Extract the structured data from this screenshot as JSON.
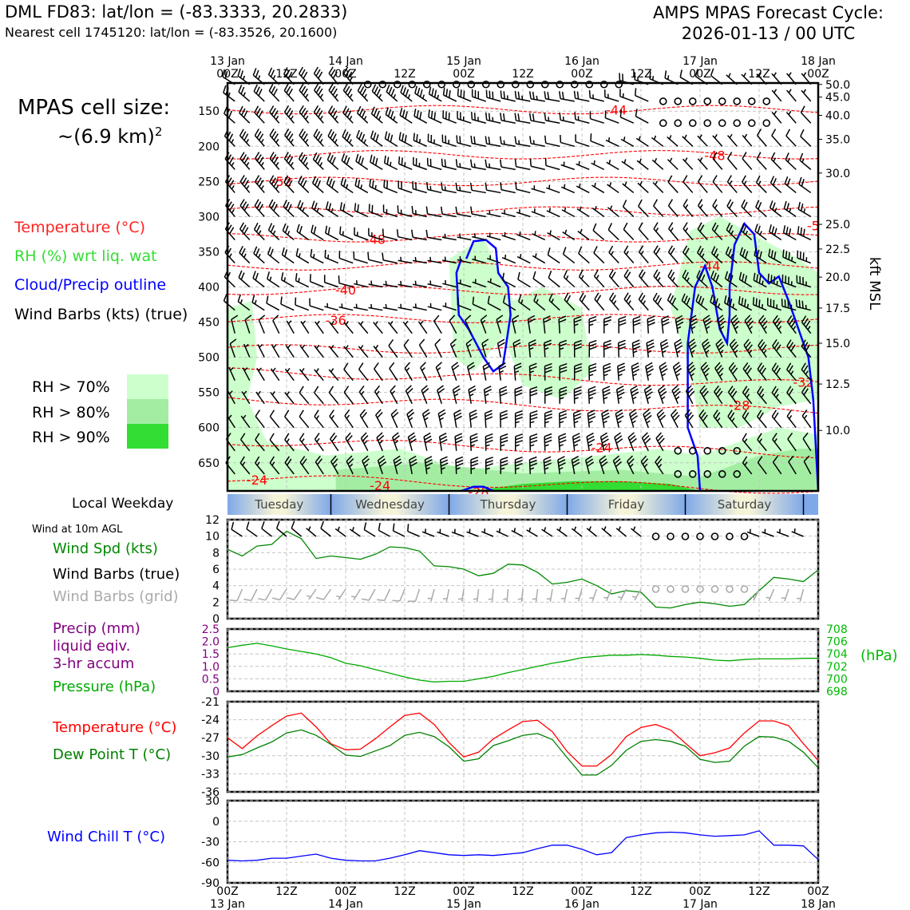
{
  "header": {
    "title_left": "DML FD83: lat/lon = (-83.3333, 20.2833)",
    "subtitle_left": "Nearest cell 1745120: lat/lon = (-83.3526, 20.1600)",
    "title_right_1": "AMPS MPAS Forecast Cycle:",
    "title_right_2": "2026-01-13 / 00 UTC"
  },
  "sidebar": {
    "cell_size_label": "MPAS cell size:",
    "cell_size_value": "~(6.9 km)",
    "cell_size_exp": "2",
    "legend_temperature": "Temperature (°C)",
    "legend_rh": "RH (%) wrt liq. wat",
    "legend_cloud": "Cloud/Precip outline",
    "legend_barbs": "Wind Barbs (kts) (true)",
    "rh_levels": [
      {
        "label": "RH > 70%",
        "color": "#ccffcc"
      },
      {
        "label": "RH > 80%",
        "color": "#a3eda3"
      },
      {
        "label": "RH > 90%",
        "color": "#33dd33"
      }
    ],
    "local_weekday": "Local Weekday",
    "wind_10m": "Wind at 10m AGL",
    "wind_spd": "Wind Spd (kts)",
    "wind_barbs_true": "Wind Barbs (true)",
    "wind_barbs_grid": "Wind Barbs (grid)",
    "precip_1": "Precip (mm)",
    "precip_2": "liquid eqiv.",
    "precip_3": "3-hr accum",
    "pressure": "Pressure (hPa)",
    "temperature": "Temperature (°C)",
    "dewpoint": "Dew Point T (°C)",
    "wind_chill": "Wind Chill T (°C)"
  },
  "colors": {
    "temperature": "#ff0000",
    "rh_text": "#22cc22",
    "cloud": "#0000ff",
    "pressure": "#00aa00",
    "precip": "#800080",
    "wind_spd": "#008800",
    "dewpoint": "#008000",
    "windchill": "#0000ff",
    "grid_barbs": "#aaaaaa"
  },
  "chart_data": [
    {
      "type": "line",
      "id": "cross-section",
      "x_top": [
        {
          "top": "13 Jan",
          "bottom": "00Z",
          "h": 0
        },
        {
          "top": "",
          "bottom": "12Z",
          "h": 12
        },
        {
          "top": "14 Jan",
          "bottom": "00Z",
          "h": 24
        },
        {
          "top": "",
          "bottom": "12Z",
          "h": 36
        },
        {
          "top": "15 Jan",
          "bottom": "00Z",
          "h": 48
        },
        {
          "top": "",
          "bottom": "12Z",
          "h": 60
        },
        {
          "top": "16 Jan",
          "bottom": "00Z",
          "h": 72
        },
        {
          "top": "",
          "bottom": "12Z",
          "h": 84
        },
        {
          "top": "17 Jan",
          "bottom": "00Z",
          "h": 96
        },
        {
          "top": "",
          "bottom": "12Z",
          "h": 108
        },
        {
          "top": "18 Jan",
          "bottom": "00Z",
          "h": 120
        }
      ],
      "xlim": [
        0,
        120
      ],
      "pressure_ticks": [
        150,
        200,
        250,
        300,
        350,
        400,
        450,
        500,
        550,
        600,
        650
      ],
      "pressure_range": [
        110,
        690
      ],
      "kft_ticks": [
        "50.0",
        "45.0",
        "40.0",
        "35.0",
        "30.0",
        "25.0",
        "22.5",
        "20.0",
        "17.5",
        "15.0",
        "12.5",
        "10.0"
      ],
      "kft_pressure": [
        112,
        130,
        156,
        190,
        238,
        311,
        346,
        386,
        430,
        480,
        538,
        604
      ],
      "right_label": "kft MSL",
      "temperature_labels": [
        {
          "text": "-44",
          "h": 79,
          "p": 149
        },
        {
          "text": "-48",
          "h": 99,
          "p": 214
        },
        {
          "text": "-52",
          "h": 11,
          "p": 251
        },
        {
          "text": "-5",
          "h": 119,
          "p": 314
        },
        {
          "text": "-48",
          "h": 30,
          "p": 333
        },
        {
          "text": "-44",
          "h": 98,
          "p": 371
        },
        {
          "text": "-40",
          "h": 24,
          "p": 405
        },
        {
          "text": "-36",
          "h": 22,
          "p": 448
        },
        {
          "text": "-32",
          "h": 117,
          "p": 536
        },
        {
          "text": "-28",
          "h": 104,
          "p": 569
        },
        {
          "text": "-24",
          "h": 76,
          "p": 629
        },
        {
          "text": "-24",
          "h": 6,
          "p": 675
        },
        {
          "text": "-24",
          "h": 31,
          "p": 683
        },
        {
          "text": "-28",
          "h": 51,
          "p": 692
        }
      ]
    },
    {
      "type": "line",
      "id": "wind-10m",
      "ylim": [
        0,
        12
      ],
      "yticks": [
        0,
        2,
        4,
        6,
        8,
        10,
        12
      ],
      "x": [
        0,
        3,
        6,
        9,
        12,
        15,
        18,
        21,
        24,
        27,
        30,
        33,
        36,
        39,
        42,
        45,
        48,
        51,
        54,
        57,
        60,
        63,
        66,
        69,
        72,
        75,
        78,
        81,
        84,
        87,
        90,
        93,
        96,
        99,
        102,
        105,
        108,
        111,
        114,
        117,
        120
      ],
      "series": [
        {
          "name": "Wind Spd (kts)",
          "values": [
            8.4,
            7.6,
            8.8,
            9.0,
            10.6,
            9.7,
            7.3,
            7.6,
            7.4,
            7.2,
            7.8,
            8.7,
            8.6,
            8.2,
            6.4,
            6.3,
            6.0,
            5.2,
            5.5,
            6.6,
            6.5,
            5.6,
            4.2,
            4.4,
            4.8,
            4.0,
            3.0,
            3.4,
            3.2,
            1.4,
            1.3,
            1.7,
            2.0,
            1.8,
            1.5,
            1.7,
            3.4,
            5.0,
            4.8,
            4.5,
            5.9
          ]
        }
      ]
    },
    {
      "type": "line",
      "id": "precip-pressure",
      "ylim_left": [
        0,
        2.5
      ],
      "yticks_left": [
        "0",
        "0.5",
        "1.0",
        "1.5",
        "2.0",
        "2.5"
      ],
      "ylim_right": [
        698,
        708
      ],
      "yticks_right": [
        "698",
        "700",
        "702",
        "704",
        "706",
        "708"
      ],
      "right_label": "(hPa)",
      "x": [
        0,
        3,
        6,
        9,
        12,
        15,
        18,
        21,
        24,
        27,
        30,
        33,
        36,
        39,
        42,
        45,
        48,
        51,
        54,
        57,
        60,
        63,
        66,
        69,
        72,
        75,
        78,
        81,
        84,
        87,
        90,
        93,
        96,
        99,
        102,
        105,
        108,
        111,
        114,
        117,
        120
      ],
      "series": [
        {
          "name": "Pressure (hPa)",
          "values": [
            705.0,
            705.4,
            705.7,
            705.3,
            704.8,
            704.4,
            704.0,
            703.4,
            702.5,
            702.1,
            701.5,
            700.9,
            700.3,
            699.8,
            699.5,
            699.6,
            699.6,
            700.0,
            700.4,
            701.0,
            701.5,
            702.0,
            702.5,
            702.9,
            703.4,
            703.6,
            703.8,
            703.8,
            703.9,
            703.8,
            703.6,
            703.5,
            703.3,
            703.0,
            702.9,
            703.1,
            703.2,
            703.2,
            703.2,
            703.3,
            703.3
          ]
        },
        {
          "name": "Precip (mm)",
          "values": [
            0,
            0,
            0,
            0,
            0,
            0,
            0,
            0,
            0,
            0,
            0,
            0,
            0,
            0,
            0,
            0,
            0,
            0,
            0,
            0,
            0,
            0,
            0,
            0,
            0,
            0,
            0,
            0,
            0,
            0,
            0,
            0,
            0,
            0,
            0,
            0,
            0,
            0,
            0,
            0,
            0
          ]
        }
      ]
    },
    {
      "type": "line",
      "id": "temp-dewpoint",
      "ylim": [
        -36,
        -21
      ],
      "yticks": [
        -36,
        -33,
        -30,
        -27,
        -24,
        -21
      ],
      "x": [
        0,
        3,
        6,
        9,
        12,
        15,
        18,
        21,
        24,
        27,
        30,
        33,
        36,
        39,
        42,
        45,
        48,
        51,
        54,
        57,
        60,
        63,
        66,
        69,
        72,
        75,
        78,
        81,
        84,
        87,
        90,
        93,
        96,
        99,
        102,
        105,
        108,
        111,
        114,
        117,
        120
      ],
      "series": [
        {
          "name": "Temperature",
          "values": [
            -27.0,
            -28.8,
            -26.7,
            -25.0,
            -23.4,
            -22.9,
            -25.2,
            -28.0,
            -29.0,
            -28.9,
            -27.2,
            -25.2,
            -23.3,
            -22.9,
            -24.8,
            -27.8,
            -30.2,
            -29.4,
            -27.2,
            -25.7,
            -24.3,
            -24.1,
            -26.0,
            -29.3,
            -31.7,
            -31.7,
            -29.8,
            -26.8,
            -25.3,
            -24.8,
            -25.7,
            -27.9,
            -30.0,
            -29.5,
            -28.7,
            -26.2,
            -24.2,
            -24.2,
            -25.0,
            -28.0,
            -30.8
          ]
        },
        {
          "name": "Dew Point",
          "values": [
            -30.2,
            -29.8,
            -28.7,
            -27.7,
            -26.2,
            -25.7,
            -26.6,
            -28.1,
            -29.9,
            -30.1,
            -29.2,
            -28.3,
            -26.6,
            -26.1,
            -26.8,
            -28.5,
            -30.9,
            -30.5,
            -28.3,
            -27.5,
            -26.6,
            -26.3,
            -27.3,
            -30.3,
            -33.2,
            -33.2,
            -31.6,
            -29.1,
            -27.6,
            -27.3,
            -27.6,
            -28.4,
            -30.6,
            -31.1,
            -30.9,
            -28.4,
            -26.8,
            -26.9,
            -27.6,
            -29.4,
            -32.0
          ]
        }
      ]
    },
    {
      "type": "line",
      "id": "wind-chill",
      "ylim": [
        -90,
        30
      ],
      "yticks": [
        -90,
        -60,
        -30,
        0,
        30
      ],
      "x_bottom": [
        {
          "top": "00Z",
          "bottom": "13 Jan",
          "h": 0
        },
        {
          "top": "12Z",
          "bottom": "",
          "h": 12
        },
        {
          "top": "00Z",
          "bottom": "14 Jan",
          "h": 24
        },
        {
          "top": "12Z",
          "bottom": "",
          "h": 36
        },
        {
          "top": "00Z",
          "bottom": "15 Jan",
          "h": 48
        },
        {
          "top": "12Z",
          "bottom": "",
          "h": 60
        },
        {
          "top": "00Z",
          "bottom": "16 Jan",
          "h": 72
        },
        {
          "top": "12Z",
          "bottom": "",
          "h": 84
        },
        {
          "top": "00Z",
          "bottom": "17 Jan",
          "h": 96
        },
        {
          "top": "12Z",
          "bottom": "",
          "h": 108
        },
        {
          "top": "00Z",
          "bottom": "18 Jan",
          "h": 120
        }
      ],
      "x": [
        0,
        3,
        6,
        9,
        12,
        15,
        18,
        21,
        24,
        27,
        30,
        33,
        36,
        39,
        42,
        45,
        48,
        51,
        54,
        57,
        60,
        63,
        66,
        69,
        72,
        75,
        78,
        81,
        84,
        87,
        90,
        93,
        96,
        99,
        102,
        105,
        108,
        111,
        114,
        117,
        120
      ],
      "series": [
        {
          "name": "Wind Chill",
          "values": [
            -57,
            -58,
            -57,
            -54,
            -54,
            -51,
            -48,
            -54,
            -57,
            -58,
            -58,
            -54,
            -49,
            -43,
            -46,
            -49,
            -50,
            -49,
            -50,
            -48,
            -46,
            -40,
            -35,
            -35,
            -41,
            -49,
            -46,
            -24,
            -20,
            -17,
            -16,
            -17,
            -20,
            -22,
            -21,
            -20,
            -14,
            -35,
            -35,
            -36,
            -56
          ]
        }
      ]
    }
  ],
  "weekdays": [
    "Tuesday",
    "Wednesday",
    "Thursday",
    "Friday",
    "Saturday"
  ]
}
